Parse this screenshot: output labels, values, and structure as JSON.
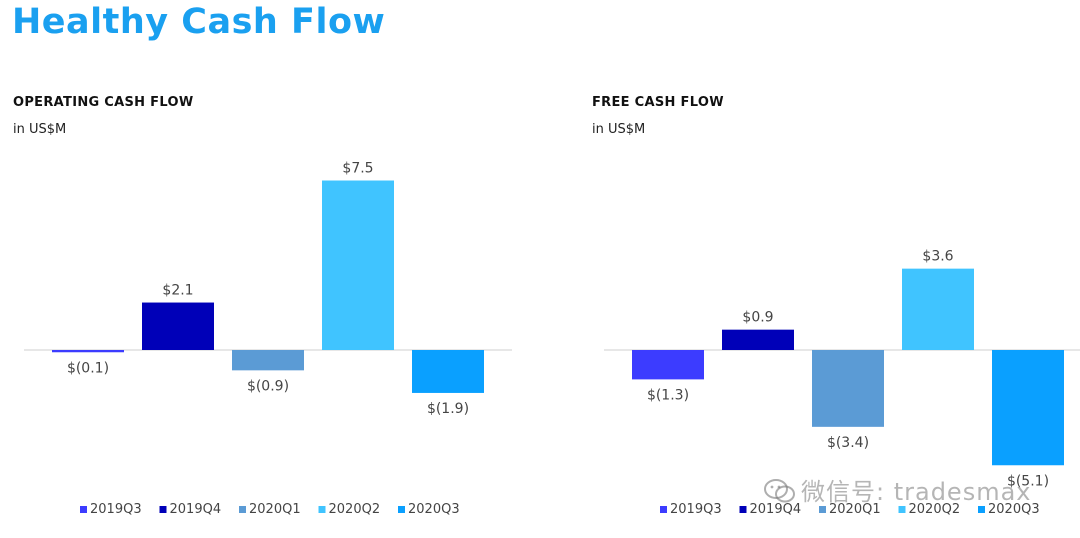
{
  "page_title": "Healthy Cash Flow",
  "colors": {
    "title": "#1aa0f0",
    "2019Q3": "#3c3cff",
    "2019Q4": "#0000b8",
    "2020Q1": "#5b9bd5",
    "2020Q2": "#40c4ff",
    "2020Q3": "#0aa0ff",
    "axis": "#cfcfcf",
    "label": "#444444"
  },
  "watermark": "微信号: tradesmax",
  "chart_data": [
    {
      "type": "bar",
      "title": "OPERATING CASH FLOW",
      "subtitle": "in US$M",
      "categories": [
        "2019Q3",
        "2019Q4",
        "2020Q1",
        "2020Q2",
        "2020Q3"
      ],
      "values": [
        -0.1,
        2.1,
        -0.9,
        7.5,
        -1.9
      ],
      "data_labels": [
        "$(0.1)",
        "$2.1",
        "$(0.9)",
        "$7.5",
        "$(1.9)"
      ],
      "legend": [
        "2019Q3",
        "2019Q4",
        "2020Q1",
        "2020Q2",
        "2020Q3"
      ],
      "legend_position": "bottom",
      "grid": false
    },
    {
      "type": "bar",
      "title": "FREE CASH FLOW",
      "subtitle": "in US$M",
      "categories": [
        "2019Q3",
        "2019Q4",
        "2020Q1",
        "2020Q2",
        "2020Q3"
      ],
      "values": [
        -1.3,
        0.9,
        -3.4,
        3.6,
        -5.1
      ],
      "data_labels": [
        "$(1.3)",
        "$0.9",
        "$(3.4)",
        "$3.6",
        "$(5.1)"
      ],
      "legend": [
        "2019Q3",
        "2019Q4",
        "2020Q1",
        "2020Q2",
        "2020Q3"
      ],
      "legend_position": "bottom",
      "grid": false
    }
  ]
}
